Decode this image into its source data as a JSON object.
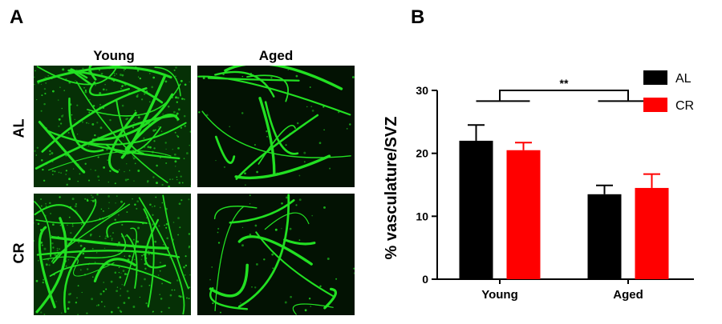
{
  "panel_a": {
    "letter": "A",
    "columns": [
      "Young",
      "Aged"
    ],
    "rows": [
      "AL",
      "CR"
    ],
    "vessel_color": "#22e022"
  },
  "panel_b": {
    "letter": "B"
  },
  "chart_data": {
    "type": "bar",
    "categories": [
      "Young",
      "Aged"
    ],
    "series": [
      {
        "name": "AL",
        "color": "#000000",
        "values": [
          22.0,
          13.5
        ],
        "errors": [
          2.5,
          1.4
        ]
      },
      {
        "name": "CR",
        "color": "#ff0000",
        "values": [
          20.5,
          14.5
        ],
        "errors": [
          1.2,
          2.2
        ]
      }
    ],
    "ylabel": "% vasculature/SVZ",
    "xlabel": "",
    "ylim": [
      0,
      30
    ],
    "yticks": [
      0,
      10,
      20,
      30
    ],
    "significance": "**",
    "legend_position": "top-right",
    "grid": false
  }
}
